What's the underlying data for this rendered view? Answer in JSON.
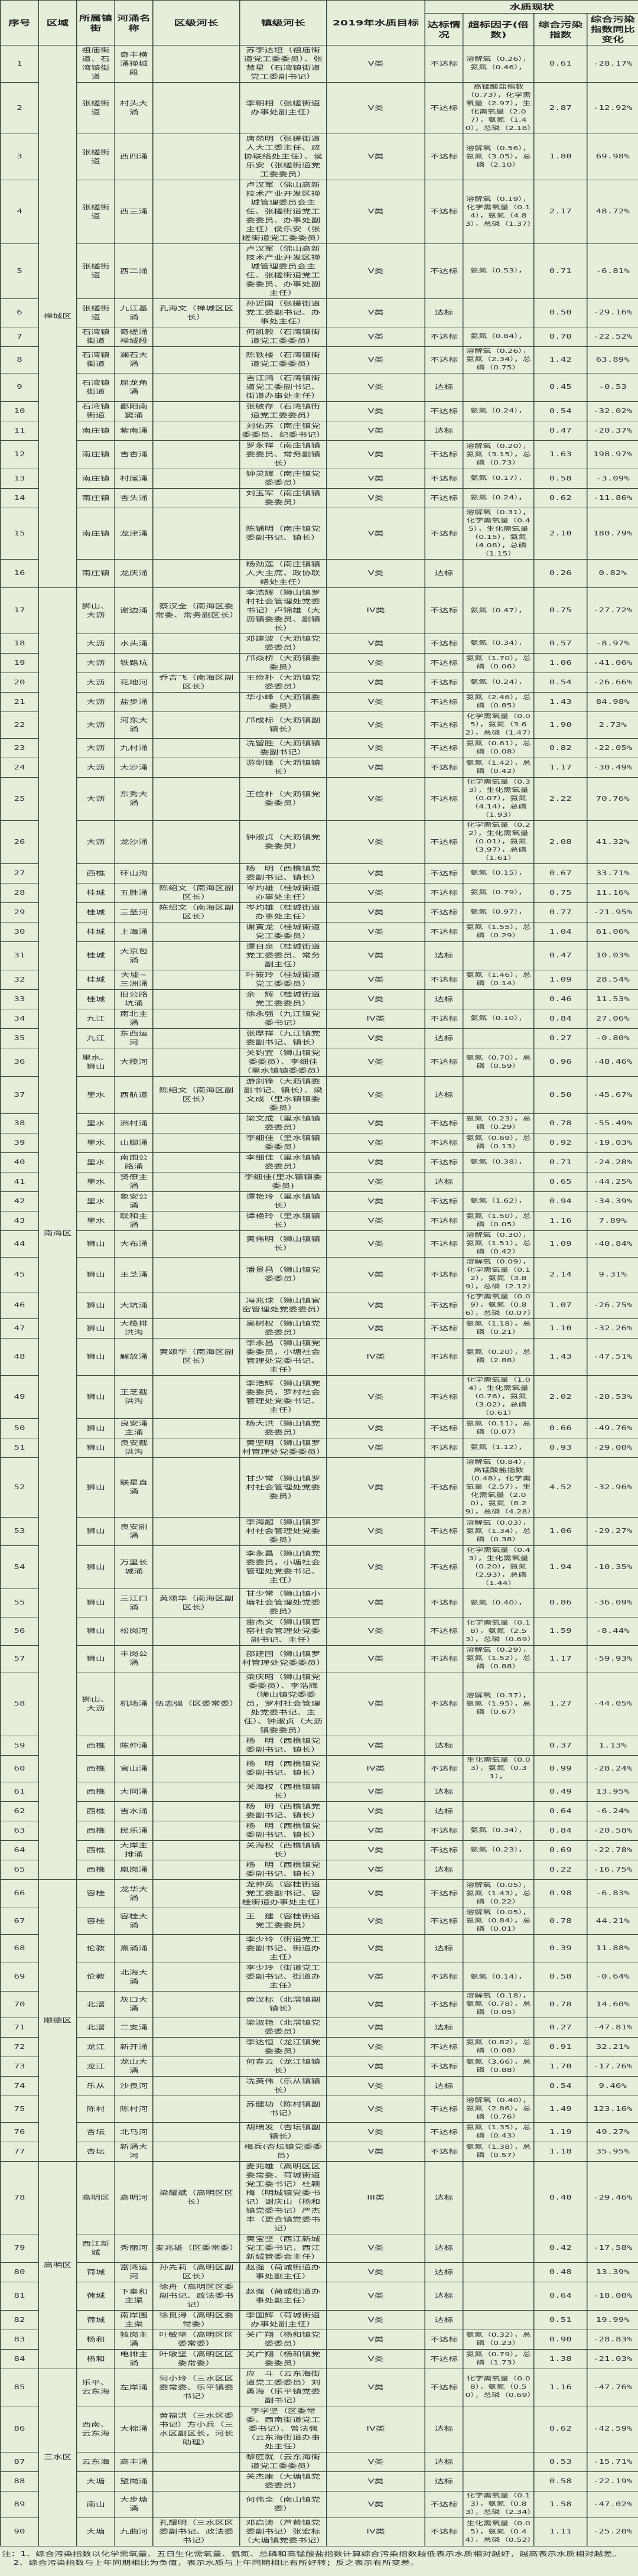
{
  "header": {
    "no": "序号",
    "district": "区域",
    "town": "所属镇街",
    "river": "河涌名称",
    "district_chief": "区级河长",
    "town_chief": "镇级河长",
    "target": "2019年水质目标",
    "status_group": "水质现状",
    "status": "达标情况",
    "factors": "超标因子(倍数)",
    "index": "综合污染指数",
    "change": "综合污染指数同比变化"
  },
  "districts": [
    {
      "name": "禅城区",
      "rows": [
        1,
        16
      ]
    },
    {
      "name": "南海区",
      "rows": [
        17,
        65
      ]
    },
    {
      "name": "顺德区",
      "rows": [
        66,
        77
      ]
    },
    {
      "name": "高明区",
      "rows": [
        78,
        84
      ]
    },
    {
      "name": "三水区",
      "rows": [
        85,
        90
      ]
    }
  ],
  "rows": [
    [
      "1",
      "祖庙街道、石湾镇街道",
      "奇丰横涌禅城段",
      "",
      "苏李达坦（祖庙街道党工委委员）、张慧星（石湾镇街道党工委副书记）",
      "V类",
      "不达标",
      "溶解氧（0.26），氨氮（0.46），",
      "0.61",
      "-28.17%"
    ],
    [
      "2",
      "张槎街道",
      "村头大涌",
      "",
      "李朝相（张槎街道办事处副主任）",
      "V类",
      "不达标",
      "高锰酸盐指数（0.73），化学需氧量（2.97），生化需氧量（2.07），氨氮（1.40），总磷（2.18）",
      "2.87",
      "-12.92%"
    ],
    [
      "3",
      "张槎街道",
      "西四涌",
      "",
      "唐苑明（张槎街道人大工委主任、政协联络处主任）、侯乐安（张槎街道党工委委员）",
      "V类",
      "不达标",
      "溶解氧（0.56），氨氮（3.05），总磷（2.10）",
      "1.80",
      "69.98%"
    ],
    [
      "4",
      "张槎街道",
      "西三涌",
      "",
      "卢汉军（佛山高新技术产业开发区禅城管理委员会主任、张槎街道党工委委员、办事处副主任）侯乐安（张槎街道党工委委员）",
      "V类",
      "不达标",
      "溶解氧（0.19），化学需氧量（0.14），氨氮（4.83），总磷（1.37）",
      "2.17",
      "48.72%"
    ],
    [
      "5",
      "张槎街道",
      "西二涌",
      "",
      "卢汉军（佛山高新技术产业开发区禅城管理委员会主任、张槎街道党工委委员、办事处副主任）",
      "V类",
      "不达标",
      "氨氮（0.53），",
      "0.71",
      "-6.81%"
    ],
    [
      "6",
      "张槎街道",
      "九江基涌",
      "孔海文（禅城区区长）",
      "孙近国（张槎街道党工委副书记、办事处主任）",
      "V类",
      "达标",
      "",
      "0.50",
      "-29.16%"
    ],
    [
      "7",
      "石湾镇街道",
      "奇槎涌禅城段",
      "",
      "何凯毅（石湾镇街道党工委委员）",
      "V类",
      "不达标",
      "氨氮（0.84），",
      "0.70",
      "-22.52%"
    ],
    [
      "8",
      "石湾镇街道",
      "澜石大涌",
      "",
      "陈铁楼（石湾镇街道党工委委员）",
      "V类",
      "不达标",
      "溶解氧（0.26），氨氮（2.34），总磷（0.75）",
      "1.42",
      "63.89%"
    ],
    [
      "9",
      "石湾镇街道",
      "屈龙角涌",
      "",
      "吉江鸿（石湾镇街道党工委副书记、街道办事处主任）",
      "V类",
      "达标",
      "",
      "0.45",
      "-0.53"
    ],
    [
      "10",
      "石湾镇街道",
      "鄱阳南窦涌",
      "",
      "张敏存（石湾镇街道党工委委员）",
      "V类",
      "不达标",
      "氨氮（0.24），",
      "0.54",
      "-32.02%"
    ],
    [
      "11",
      "南庄镇",
      "紫南涌",
      "",
      "刘佑苏（南庄镇党委委员、纪委书记）",
      "V类",
      "达标",
      "",
      "0.47",
      "-20.37%"
    ],
    [
      "12",
      "南庄镇",
      "吉杏涌",
      "",
      "罗永祥（南庄镇镇委委员、常务副镇长）",
      "V类",
      "不达标",
      "溶解氧（0.20），氨氮（3.15），总磷（0.73）",
      "1.63",
      "198.97%"
    ],
    [
      "13",
      "南庄镇",
      "村尾涌",
      "",
      "钟灵辉（南庄镇党委委员）",
      "V类",
      "不达标",
      "氨氮（0.17），",
      "0.58",
      "-3.09%"
    ],
    [
      "14",
      "南庄镇",
      "杏头涌",
      "",
      "刘玉军（南庄镇镇委委员）",
      "V类",
      "不达标",
      "氨氮（0.24），",
      "0.62",
      "-11.86%"
    ],
    [
      "15",
      "南庄镇",
      "龙津涌",
      "",
      "陈铺明（南庄镇党委副书记、镇长）",
      "V类",
      "不达标",
      "溶解氧（0.31），化学需氧量（0.45），生化需氧量（0.15），氨氮（4.08），总磷（1.15）",
      "2.10",
      "180.79%"
    ],
    [
      "16",
      "南庄镇",
      "龙庆涌",
      "",
      "杨劲莲（南庄镇镇人大主席、政协联络处主任）",
      "V类",
      "达标",
      "",
      "0.26",
      "0.82%"
    ],
    [
      "17",
      "狮山、大沥",
      "谢边涌",
      "蔡汉全（南海区委常委、常务副区长）",
      "李浩辉（狮山镇罗村社会管理处党委书记）卢锦雄（大沥镇委委员、副镇长）",
      "IV类",
      "不达标",
      "氨氮（0.47），",
      "0.75",
      "-27.72%"
    ],
    [
      "18",
      "大沥",
      "水头涌",
      "",
      "邓建波（大沥镇党委委员）",
      "V类",
      "不达标",
      "氨氮（0.34），",
      "0.57",
      "-8.97%"
    ],
    [
      "19",
      "大沥",
      "铁路坑",
      "",
      "邝焱桥（大沥镇委委员）",
      "V类",
      "不达标",
      "氨氮（1.70），总磷（0.06）",
      "1.06",
      "-41.06%"
    ],
    [
      "20",
      "大沥",
      "花地河",
      "乔吉飞（南海区副区长）",
      "王俭朴（大沥镇党委委员）",
      "V类",
      "不达标",
      "氨氮（0.24），",
      "0.54",
      "-26.66%"
    ],
    [
      "21",
      "大沥",
      "盐步涌",
      "",
      "华小峰（大沥镇委委员）",
      "V类",
      "不达标",
      "氨氮（2.46），总磷（0.85）",
      "1.43",
      "84.98%"
    ],
    [
      "22",
      "大沥",
      "河东大涌",
      "",
      "邝成标（大沥镇副镇长）",
      "V类",
      "不达标",
      "化学需氧量（0.05），氨氮（3.62），总磷（1.47）",
      "1.90",
      "2.73%"
    ],
    [
      "23",
      "大沥",
      "九村涌",
      "",
      "冼留胜（大沥镇镇委副书记）",
      "V类",
      "不达标",
      "氨氮（0.61），总磷（0.08）",
      "0.82",
      "-22.05%"
    ],
    [
      "24",
      "大沥",
      "大沙涌",
      "",
      "游剑锋（大沥镇镇长）",
      "V类",
      "不达标",
      "氨氮（1.42），总磷（0.42）",
      "1.17",
      "-30.49%"
    ],
    [
      "25",
      "大沥",
      "东秀大涌",
      "",
      "王俭朴（大沥镇党委委员）",
      "V类",
      "不达标",
      "化学需氧量（0.33），生化需氧量（0.07），氨氮（4.14），总磷（1.93）",
      "2.22",
      "70.76%"
    ],
    [
      "26",
      "大沥",
      "龙沙涌",
      "",
      "钟淑贞（大沥镇党委委员）",
      "V类",
      "不达标",
      "化学需氧量（0.22），生化需氧量（0.01），氨氮（3.97），总磷（1.61）",
      "2.08",
      "41.32%"
    ],
    [
      "27",
      "西樵",
      "环山沟",
      "",
      "杨　明（西樵镇党委副书记、镇长）",
      "V类",
      "不达标",
      "氨氮（0.15），",
      "0.67",
      "33.71%"
    ],
    [
      "28",
      "桂城",
      "五胜涌",
      "陈绍文（南海区副区长）",
      "岑灼雄（桂城街道办事处主任）",
      "V类",
      "不达标",
      "氨氮（0.79），",
      "0.75",
      "11.16%"
    ],
    [
      "29",
      "桂城",
      "三圣河",
      "陈绍文（南海区副区长）",
      "岑灼雄（桂城街道办事处主任）",
      "V类",
      "不达标",
      "氨氮（0.97），",
      "0.77",
      "-21.95%"
    ],
    [
      "30",
      "桂城",
      "上海涌",
      "",
      "谢寅龙（桂城街道党工委委员）",
      "V类",
      "不达标",
      "氨氮（1.55），总磷（0.29）",
      "1.04",
      "61.06%"
    ],
    [
      "31",
      "桂城",
      "大京包涌",
      "",
      "谭日泉（桂城街道党工委委员、常务副主任）",
      "V类",
      "达标",
      "",
      "0.47",
      "10.03%"
    ],
    [
      "32",
      "桂城",
      "大墟~三洲涌",
      "",
      "叶筱玲（桂城街道党工委委员）",
      "V类",
      "不达标",
      "氨氮（1.46），总磷（0.14）",
      "1.09",
      "28.54%"
    ],
    [
      "33",
      "桂城",
      "旧公路坑涌",
      "",
      "余　辉（桂城街道党工委委员）",
      "V类",
      "达标",
      "",
      "0.46",
      "11.53%"
    ],
    [
      "34",
      "九江",
      "南北主涌",
      "",
      "徐永强（九江镇党委书记）",
      "IV类",
      "不达标",
      "氨氮（0.10），",
      "0.84",
      "27.06%"
    ],
    [
      "35",
      "九江",
      "东西运河",
      "",
      "张厚祥（九江镇党委副书记、镇长）",
      "V类",
      "达标",
      "",
      "0.27",
      "-0.80%"
    ],
    [
      "36",
      "里水、狮山",
      "大榄河",
      "",
      "关钧宜（狮山镇党委委员）、李细佳（里水镇镇委委员）",
      "V类",
      "不达标",
      "氨氮（0.70），总磷（0.59）",
      "0.96",
      "-48.46%"
    ],
    [
      "37",
      "里水",
      "西航道",
      "陈绍文（南海区副区长）",
      "游剑锋（大沥镇委副书记、镇长）、梁文成（里水镇镇委委员）",
      "V类",
      "达标",
      "",
      "0.50",
      "-45.67%"
    ],
    [
      "38",
      "里水",
      "洲村涌",
      "",
      "梁文成（里水镇镇委委员）",
      "V类",
      "不达标",
      "氨氮（0.23），总磷（0.29）",
      "0.78",
      "-55.49%"
    ],
    [
      "39",
      "里水",
      "山脚涌",
      "",
      "李细佳（里水镇镇委委员）",
      "V类",
      "不达标",
      "氨氮（0.69），总磷（0.13）",
      "0.92",
      "-19.03%"
    ],
    [
      "40",
      "里水",
      "南围公路涌",
      "",
      "李细佳（里水镇镇委委员）",
      "V类",
      "不达标",
      "氨氮（0.38），",
      "0.71",
      "-24.28%"
    ],
    [
      "41",
      "里水",
      "贤僚主涌",
      "",
      "李细佳(里水镇镇委委员)",
      "V类",
      "达标",
      "",
      "0.65",
      "-44.25%"
    ],
    [
      "42",
      "里水",
      "象安公涌",
      "",
      "谭艳玲（里水镇镇长）",
      "V类",
      "不达标",
      "氨氮（1.62），",
      "0.94",
      "-34.39%"
    ],
    [
      "43",
      "里水",
      "联和主涌",
      "",
      "谭艳玲（里水镇镇长）",
      "V类",
      "不达标",
      "氨氮（1.50），总磷（0.05）",
      "1.16",
      "7.89%"
    ],
    [
      "44",
      "狮山",
      "大布涌",
      "",
      "黄伟明（狮山镇镇长）",
      "V类",
      "不达标",
      "溶解氧（0.30），氨氮（1.51），总磷（0.42）",
      "1.09",
      "-40.84%"
    ],
    [
      "45",
      "狮山",
      "王芝涌",
      "",
      "潘景昌（狮山镇党委委员）",
      "V类",
      "不达标",
      "溶解氧（0.09），化学需氧量（0.12），氨氮（3.89），总磷（2.12）",
      "2.14",
      "9.31%"
    ],
    [
      "46",
      "狮山",
      "大坑涌",
      "",
      "冯兆球（狮山镇官窑管理处党委委员）",
      "V类",
      "不达标",
      "化学需氧量（0.09），氨氮（0.86），总磷（0.07）",
      "1.07",
      "-26.75%"
    ],
    [
      "47",
      "狮山",
      "大榄排洪沟",
      "",
      "吴树权（狮山镇党委委员）",
      "V类",
      "不达标",
      "氨氮（1.18），总磷（0.21）",
      "1.10",
      "-32.26%"
    ],
    [
      "48",
      "狮山",
      "解放涌",
      "黄颂华（南海区副区长）",
      "李永昌（狮山镇党委委员，小塘社会管理处党委书记、主任）",
      "IV类",
      "不达标",
      "氨氮（0.20），总磷（2.88）",
      "1.43",
      "-47.51%"
    ],
    [
      "49",
      "狮山",
      "王芝截洪沟",
      "",
      "李浩辉（狮山镇党委委员，罗村社会管理处党委书记、主任）",
      "V类",
      "不达标",
      "化学需氧量（1.04），生化需氧量（0.76），氨氮（3.02），总磷（0.61）",
      "2.02",
      "-20.53%"
    ],
    [
      "50",
      "狮山",
      "良安涌主涌",
      "",
      "杨大洪（狮山镇党委委员）",
      "V类",
      "不达标",
      "氨氮（0.11），总磷（0.07）",
      "0.66",
      "-49.76%"
    ],
    [
      "51",
      "狮山",
      "良安截洪沟",
      "",
      "黄坚明（狮山镇罗村管理处党委委员）",
      "V类",
      "不达标",
      "氨氮（1.12），",
      "0.93",
      "-29.00%"
    ],
    [
      "52",
      "狮山",
      "联星直涌",
      "",
      "甘少常（狮山镇罗村社会管理处党委委员）",
      "V类",
      "不达标",
      "溶解氧（0.84），高锰酸盐指数（0.48），化学需氧量（2.57），生化需氧量（2.00），氨氮（8.29），总磷（4.28）",
      "4.52",
      "-32.96%"
    ],
    [
      "53",
      "狮山",
      "良安副涌",
      "",
      "李海超（狮山镇罗村社会管理处党委委员）",
      "V类",
      "不达标",
      "溶解氧（0.03），氨氮（1.34），总磷（0.38）",
      "1.06",
      "-29.27%"
    ],
    [
      "54",
      "狮山",
      "万里长城涌",
      "",
      "李永昌（狮山镇党委委员，小塘社会管理处党委书记、主任）",
      "V类",
      "不达标",
      "化学需氧量（0.43），生化需氧量（0.20），氨氮（2.93），总磷（1.44）",
      "1.94",
      "-10.35%"
    ],
    [
      "55",
      "狮山",
      "三江口涌",
      "黄颂华（南海区副区长）",
      "甘少常（狮山镇小塘社会管理处党委委员）",
      "V类",
      "不达标",
      "氨氮（0.40），",
      "0.86",
      "-36.09%"
    ],
    [
      "56",
      "狮山",
      "松岗河",
      "",
      "雷杰文（狮山镇官窑社会管理处党委副书记、主任）",
      "V类",
      "不达标",
      "化学需氧量（0.18），氨氮（2.53），总磷（0.69）",
      "1.59",
      "-8.44%"
    ],
    [
      "57",
      "狮山",
      "丰岗公涌",
      "",
      "邵建国（狮山镇罗村管理处党委委员）",
      "V类",
      "不达标",
      "溶解氧（0.29），氨氮（1.52），总磷（0.88）",
      "1.17",
      "-59.93%"
    ],
    [
      "58",
      "狮山、大沥",
      "机场涌",
      "伍志强（区委常委）",
      "梁庆昭（狮山镇党委委员）、李浩辉（狮山镇党委委员，罗村社会管理处党委书记、主任）、钟淑贞（大沥镇委委员）",
      "V类",
      "不达标",
      "溶解氧（0.37），氨氮（1.95），总磷（0.67）",
      "1.27",
      "-44.05%"
    ],
    [
      "59",
      "西樵",
      "陈仲涌",
      "",
      "杨　明（西樵镇党委副书记、镇长）",
      "V类",
      "达标",
      "",
      "0.37",
      "1.13%"
    ],
    [
      "60",
      "西樵",
      "官山涌",
      "",
      "杨　明（西樵镇党委副书记、镇长）",
      "IV类",
      "不达标",
      "生化需氧量（0.03），氨氮（0.31），",
      "0.99",
      "-28.24%"
    ],
    [
      "61",
      "西樵",
      "大同涌",
      "",
      "关海权（西樵镇镇长）",
      "V类",
      "达标",
      "",
      "0.49",
      "13.95%"
    ],
    [
      "62",
      "西樵",
      "吉水涌",
      "",
      "杨　明（西樵镇党委副书记、镇长）",
      "V类",
      "达标",
      "",
      "0.64",
      "-6.24%"
    ],
    [
      "63",
      "西樵",
      "民乐涌",
      "",
      "杨　明（西樵镇党委副书记、镇长）",
      "V类",
      "不达标",
      "氨氮（0.34），",
      "0.84",
      "-20.58%"
    ],
    [
      "64",
      "西樵",
      "大岸主排涌",
      "",
      "关海权（西樵镇镇长）",
      "V类",
      "不达标",
      "氨氮（0.23），",
      "0.69",
      "-22.78%"
    ],
    [
      "65",
      "西樵",
      "凰岗涌",
      "",
      "杨　明（西樵镇党委副书记、镇长）",
      "V类",
      "达标",
      "",
      "0.22",
      "-16.75%"
    ],
    [
      "66",
      "容桂",
      "龙华大涌",
      "",
      "龙仲英（容桂街道党工委副书记、容桂街道办事处主任）",
      "V类",
      "不达标",
      "溶解氧（0.05），氨氮（1.43），总磷（0.22）",
      "0.98",
      "-6.83%"
    ],
    [
      "67",
      "容桂",
      "容桂大涌",
      "",
      "王　建（容桂街道党工委委员）",
      "V类",
      "不达标",
      "溶解氧（0.05），氨氮（0.84），总磷（0.01）",
      "0.78",
      "44.21%"
    ],
    [
      "68",
      "伦教",
      "熹涌涌",
      "",
      "李少玲（街道党工委副书记、街道办主任）",
      "V类",
      "达标",
      "",
      "0.39",
      "11.88%"
    ],
    [
      "69",
      "伦教",
      "北海大涌",
      "",
      "李少玲（街道党工委副书记、街道办主任）",
      "V类",
      "不达标",
      "氨氮（0.14），",
      "0.58",
      "-0.64%"
    ],
    [
      "70",
      "北滘",
      "灰口大涌",
      "",
      "黄汉标（北滘镇副镇长）",
      "V类",
      "不达标",
      "溶解氧（0.18），氨氮（0.78），总磷（0.05）",
      "0.78",
      "14.60%"
    ],
    [
      "71",
      "北滘",
      "二支涌",
      "",
      "梁淑艳（北滘镇党委委员）",
      "V类",
      "达标",
      "",
      "0.27",
      "-47.81%"
    ],
    [
      "72",
      "龙江",
      "新开涌",
      "",
      "李达恒（龙江镇党委委员）",
      "V类",
      "不达标",
      "氨氮（0.82），总磷（0.08）",
      "0.91",
      "32.21%"
    ],
    [
      "73",
      "龙江",
      "龙山大涌",
      "",
      "何春云（龙江镇镇长）",
      "V类",
      "不达标",
      "氨氮（3.66），总磷（0.88）",
      "1.70",
      "-17.76%"
    ],
    [
      "74",
      "乐从",
      "沙良河",
      "",
      "冼英伟（乐从镇镇长）",
      "V类",
      "达标",
      "",
      "0.54",
      "9.46%"
    ],
    [
      "75",
      "陈村",
      "陈村河",
      "",
      "苏健功（陈村镇副书记）",
      "V类",
      "不达标",
      "溶解氧（0.40），氨氮（2.86），总磷（0.76）",
      "1.49",
      "123.16%"
    ],
    [
      "76",
      "杏坛",
      "北马河",
      "",
      "胡瑞发（杏坛镇副镇长）",
      "V类",
      "不达标",
      "氨氮（1.35），总磷（0.43）",
      "1.19",
      "49.27%"
    ],
    [
      "77",
      "杏坛",
      "新涌大河",
      "",
      "梅兵(杏坛镇党委委员)",
      "V类",
      "不达标",
      "氨氮（1.38），总磷（0.57）",
      "1.18",
      "35.95%"
    ],
    [
      "78",
      "高明区",
      "高明河",
      "梁耀斌（高明区区长）",
      "麦兆雄（高明区区委常委、荷城街道党工委书记）杜颖梅（明城镇党委书记）谢庆山（杨和镇党委书记）严杰丰（更合镇党委书记）",
      "III类",
      "达标",
      "",
      "0.40",
      "-29.46%"
    ],
    [
      "79",
      "西江新城",
      "秀丽河",
      "麦兆雄（区委常委）",
      "黄宝坚（西江新城党工委书记，西江新城管委会主任）",
      "V类",
      "达标",
      "",
      "0.42",
      "-17.58%"
    ],
    [
      "80",
      "荷城",
      "富湾运河",
      "孙先莉（高明区副区长）",
      "赵强（荷城街道办事处副主任）",
      "V类",
      "达标",
      "",
      "0.48",
      "13.39%"
    ],
    [
      "81",
      "荷城",
      "下秦和主渠",
      "徐舟（高明区区委副书记、政法委书记）",
      "赵强（荷城街道办事处副主任）",
      "V类",
      "达标",
      "",
      "0.64",
      "-18.00%"
    ],
    [
      "82",
      "荷城",
      "南岸围主渠",
      "徐觅浔（高明区委常委）",
      "李国辉（荷城街道办事处副主任）",
      "V类",
      "达标",
      "",
      "0.51",
      "19.99%"
    ],
    [
      "83",
      "杨和",
      "独岗主涌",
      "叶敏坚（高明区区委常委）",
      "关广翔（杨和镇党委委员）",
      "V类",
      "不达标",
      "氨氮（0.32），总磷（0.23）",
      "0.90",
      "-28.83%"
    ],
    [
      "84",
      "杨和",
      "电排主涌",
      "叶敏坚（高明区区委常委）",
      "关广翔（杨和镇党委委员）",
      "V类",
      "不达标",
      "氨氮（0.79），总磷（1.73）",
      "1.38",
      "-21.03%"
    ],
    [
      "85",
      "乐平、云东海",
      "左岸涌",
      "何小玲（三水区区委常委、乐平镇委书记）",
      "应　斗（云东海街道党工委委员）刘勇海（乐平镇党委副书记）",
      "V类",
      "不达标",
      "化学需氧量（0.08），氨氮（0.50），总磷（0.69）",
      "1.16",
      "-47.76%"
    ],
    [
      "86",
      "西南、云东海",
      "大棉涌",
      "黄福洪（三水区委书记）方小兵（三水区副区长，河长助理）",
      "李学坚（区委常委、西南街道党工委书记）、曾法强（云东海街道办事处主任）",
      "IV类",
      "达标",
      "",
      "0.62",
      "-42.59%"
    ],
    [
      "87",
      "云东海",
      "高丰涌",
      "",
      "黎庭就（云东海街道党工委委员）",
      "V类",
      "达标",
      "",
      "0.53",
      "-15.71%"
    ],
    [
      "88",
      "大塘",
      "望岗涌",
      "",
      "关杰康（大塘镇党委委员）",
      "V类",
      "达标",
      "",
      "0.58",
      "-22.19%"
    ],
    [
      "89",
      "南山",
      "大步塘涌",
      "",
      "何伟全（南山镇党委）",
      "V类",
      "不达标",
      "化学需氧量（0.13），氨氮（0.83），总磷（2.34）",
      "1.58",
      "-47.02%"
    ],
    [
      "90",
      "大塘",
      "九曲河",
      "孔耀明（三水区区委副书记、政法委书记）",
      "邓启涛（芦苞镇党委副书记）张宏标（大塘镇党委书记）",
      "IV类",
      "不达标",
      "生化需氧量（0.05），氨氮（0.44），总磷（0.52）",
      "1.11",
      "-25.20%"
    ]
  ],
  "notes": [
    "注：1、综合污染指数以化学需氧量、五日生化需氧量、氨氮、总磷和高锰酸盐指数计算综合污染指数越低表示水质相对越好，越高表示水质相对越差。",
    "2、综合污染指数与上年同期相比为负值，表示水质与上年同期相比有所好转；反之表示有所变差。"
  ]
}
